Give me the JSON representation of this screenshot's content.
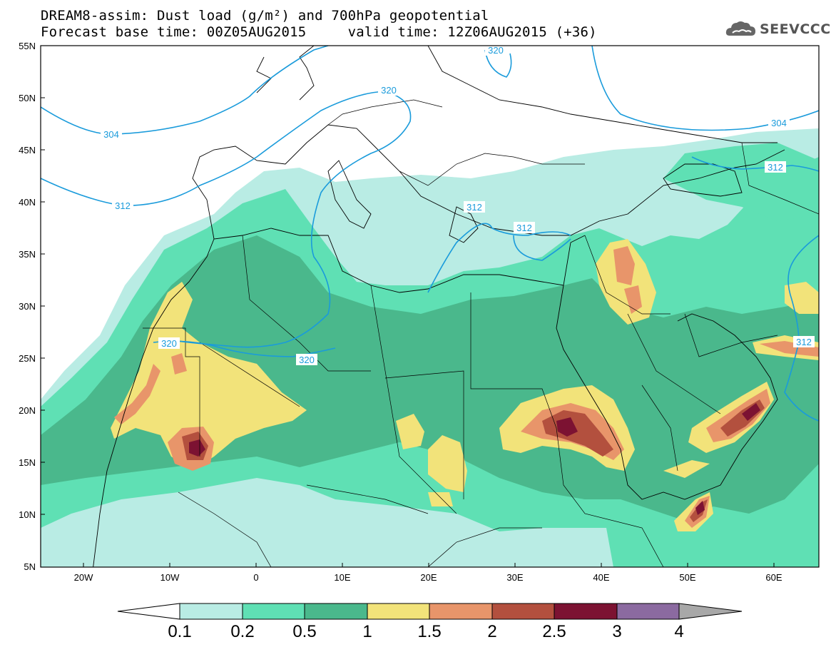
{
  "title": {
    "line1": "DREAM8-assim: Dust load (g/m²) and 700hPa geopotential",
    "line2": "Forecast base time: 00Z05AUG2015     valid time: 12Z06AUG2015 (+36)"
  },
  "logo": {
    "text": "SEEVCCC",
    "icon": "cloud-icon"
  },
  "axes": {
    "lat_labels": [
      "55N",
      "50N",
      "45N",
      "40N",
      "35N",
      "30N",
      "25N",
      "20N",
      "15N",
      "10N",
      "5N"
    ],
    "lon_labels": [
      "20W",
      "10W",
      "0",
      "10E",
      "20E",
      "30E",
      "40E",
      "50E",
      "60E"
    ]
  },
  "contours": {
    "labels": [
      "320",
      "320",
      "304",
      "312",
      "312",
      "304",
      "312",
      "312",
      "312",
      "320",
      "320"
    ]
  },
  "colorbar": {
    "ticks": [
      "0.1",
      "0.2",
      "0.5",
      "1",
      "1.5",
      "2",
      "2.5",
      "3",
      "4"
    ],
    "colors": [
      "#b9ece4",
      "#5fe0b4",
      "#4ab88c",
      "#f2e37a",
      "#e8956a",
      "#b3503e",
      "#7c1232",
      "#8b6aa0"
    ]
  },
  "chart_data": {
    "type": "heatmap",
    "title": "DREAM8-assim: Dust load (g/m²) and 700hPa geopotential",
    "variable": "Dust load (g/m²)",
    "overlay": "700hPa geopotential contours (304, 312, 320)",
    "x_range": [
      "25W",
      "65E"
    ],
    "y_range": [
      "5N",
      "55N"
    ],
    "levels": [
      0.1,
      0.2,
      0.5,
      1,
      1.5,
      2,
      2.5,
      3,
      4
    ]
  }
}
